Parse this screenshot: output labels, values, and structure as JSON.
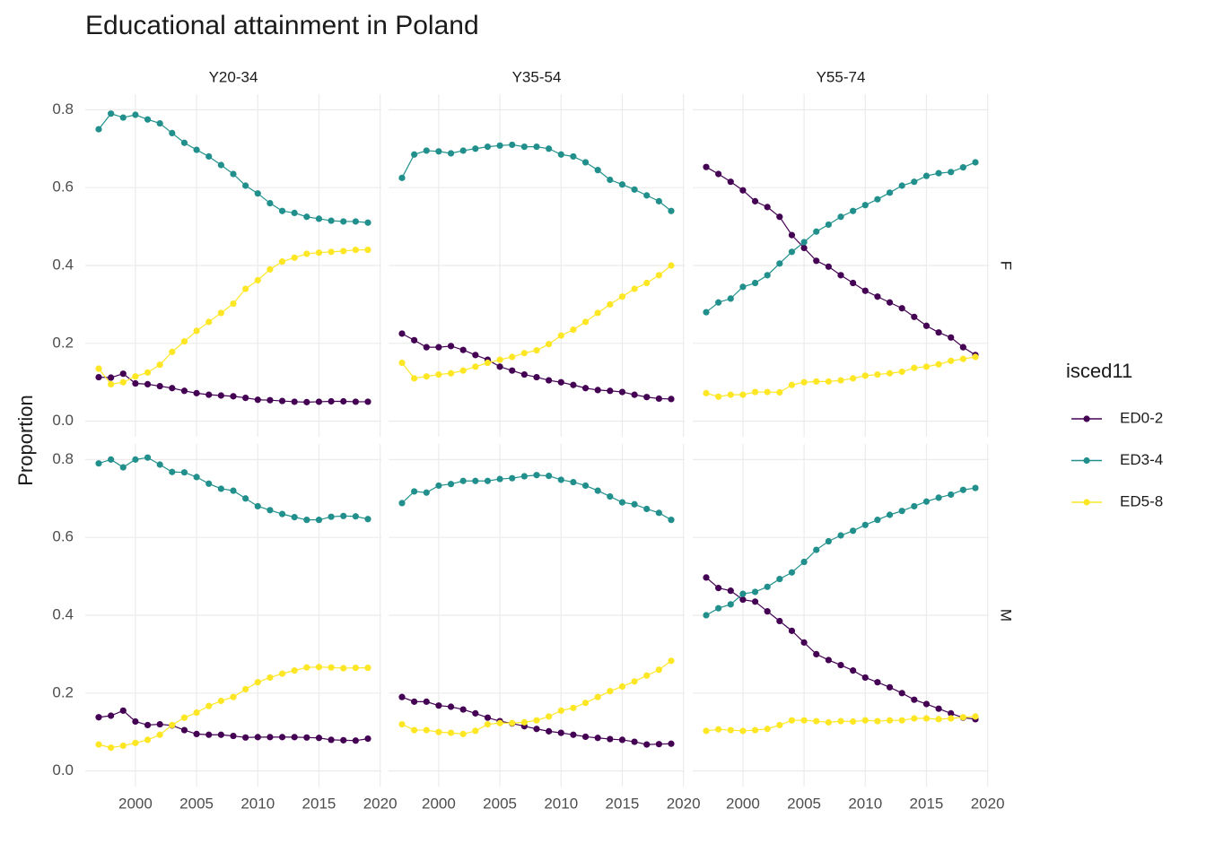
{
  "chart_data": {
    "type": "line",
    "title": "Educational attainment in Poland",
    "y_label": "Proportion",
    "legend_title": "isced11",
    "columns": [
      "Y20-34",
      "Y35-54",
      "Y55-74"
    ],
    "rows": [
      "F",
      "M"
    ],
    "x": [
      1997,
      1998,
      1999,
      2000,
      2001,
      2002,
      2003,
      2004,
      2005,
      2006,
      2007,
      2008,
      2009,
      2010,
      2011,
      2012,
      2013,
      2014,
      2015,
      2016,
      2017,
      2018,
      2019
    ],
    "xlim": [
      1995.9,
      2020.1
    ],
    "xticks": [
      2000,
      2005,
      2010,
      2015,
      2020
    ],
    "ylim": [
      -0.04,
      0.84
    ],
    "yticks": [
      {
        "value": 0,
        "label": "0.0"
      },
      0.2,
      0.4,
      0.6,
      0.8
    ],
    "grid": true,
    "series": [
      {
        "name": "ED0-2",
        "color": "#440154"
      },
      {
        "name": "ED3-4",
        "color": "#21908C"
      },
      {
        "name": "ED5-8",
        "color": "#FDE725"
      }
    ],
    "panels": [
      {
        "values": [
          [
            0.113,
            0.112,
            0.122,
            0.097,
            0.095,
            0.09,
            0.085,
            0.078,
            0.072,
            0.068,
            0.066,
            0.064,
            0.06,
            0.055,
            0.054,
            0.052,
            0.05,
            0.049,
            0.05,
            0.051,
            0.051,
            0.05,
            0.05
          ],
          [
            0.75,
            0.79,
            0.78,
            0.787,
            0.775,
            0.765,
            0.74,
            0.715,
            0.697,
            0.68,
            0.658,
            0.635,
            0.605,
            0.585,
            0.56,
            0.54,
            0.535,
            0.525,
            0.52,
            0.515,
            0.513,
            0.513,
            0.51
          ],
          [
            0.135,
            0.095,
            0.1,
            0.115,
            0.125,
            0.145,
            0.178,
            0.205,
            0.232,
            0.255,
            0.278,
            0.302,
            0.34,
            0.362,
            0.39,
            0.41,
            0.42,
            0.43,
            0.433,
            0.435,
            0.437,
            0.44,
            0.44
          ]
        ]
      },
      {
        "values": [
          [
            0.225,
            0.208,
            0.19,
            0.19,
            0.193,
            0.183,
            0.17,
            0.158,
            0.14,
            0.13,
            0.12,
            0.113,
            0.105,
            0.1,
            0.093,
            0.085,
            0.08,
            0.078,
            0.075,
            0.068,
            0.062,
            0.058,
            0.057
          ],
          [
            0.625,
            0.685,
            0.695,
            0.693,
            0.688,
            0.695,
            0.7,
            0.705,
            0.708,
            0.71,
            0.705,
            0.705,
            0.7,
            0.685,
            0.68,
            0.665,
            0.645,
            0.62,
            0.608,
            0.595,
            0.58,
            0.565,
            0.54
          ],
          [
            0.15,
            0.11,
            0.115,
            0.12,
            0.123,
            0.13,
            0.14,
            0.15,
            0.158,
            0.165,
            0.175,
            0.182,
            0.198,
            0.22,
            0.235,
            0.255,
            0.278,
            0.3,
            0.32,
            0.34,
            0.355,
            0.375,
            0.4
          ]
        ]
      },
      {
        "values": [
          [
            0.653,
            0.635,
            0.615,
            0.593,
            0.565,
            0.55,
            0.525,
            0.478,
            0.445,
            0.412,
            0.397,
            0.375,
            0.355,
            0.335,
            0.32,
            0.305,
            0.29,
            0.268,
            0.245,
            0.228,
            0.215,
            0.19,
            0.17
          ],
          [
            0.28,
            0.305,
            0.315,
            0.345,
            0.355,
            0.375,
            0.405,
            0.435,
            0.46,
            0.487,
            0.505,
            0.525,
            0.54,
            0.555,
            0.57,
            0.587,
            0.605,
            0.615,
            0.63,
            0.637,
            0.64,
            0.652,
            0.665
          ],
          [
            0.072,
            0.063,
            0.068,
            0.068,
            0.075,
            0.075,
            0.074,
            0.093,
            0.1,
            0.102,
            0.102,
            0.105,
            0.11,
            0.117,
            0.12,
            0.123,
            0.127,
            0.137,
            0.14,
            0.146,
            0.155,
            0.16,
            0.165
          ]
        ]
      },
      {
        "values": [
          [
            0.138,
            0.142,
            0.155,
            0.127,
            0.118,
            0.12,
            0.117,
            0.105,
            0.095,
            0.093,
            0.093,
            0.09,
            0.086,
            0.087,
            0.087,
            0.087,
            0.087,
            0.086,
            0.085,
            0.08,
            0.079,
            0.078,
            0.083
          ],
          [
            0.79,
            0.8,
            0.78,
            0.8,
            0.805,
            0.787,
            0.768,
            0.767,
            0.755,
            0.738,
            0.725,
            0.72,
            0.7,
            0.68,
            0.67,
            0.66,
            0.652,
            0.645,
            0.645,
            0.653,
            0.655,
            0.654,
            0.647
          ],
          [
            0.068,
            0.06,
            0.065,
            0.072,
            0.08,
            0.093,
            0.118,
            0.137,
            0.15,
            0.167,
            0.18,
            0.19,
            0.21,
            0.228,
            0.24,
            0.25,
            0.258,
            0.266,
            0.267,
            0.266,
            0.264,
            0.265,
            0.265
          ]
        ]
      },
      {
        "values": [
          [
            0.19,
            0.178,
            0.178,
            0.168,
            0.165,
            0.158,
            0.148,
            0.137,
            0.128,
            0.122,
            0.115,
            0.108,
            0.102,
            0.098,
            0.093,
            0.088,
            0.085,
            0.082,
            0.08,
            0.075,
            0.068,
            0.069,
            0.07
          ],
          [
            0.688,
            0.718,
            0.715,
            0.733,
            0.737,
            0.745,
            0.745,
            0.745,
            0.75,
            0.752,
            0.757,
            0.76,
            0.758,
            0.748,
            0.742,
            0.733,
            0.72,
            0.705,
            0.69,
            0.685,
            0.673,
            0.663,
            0.645
          ],
          [
            0.12,
            0.105,
            0.105,
            0.1,
            0.098,
            0.095,
            0.103,
            0.12,
            0.123,
            0.123,
            0.125,
            0.13,
            0.14,
            0.155,
            0.162,
            0.175,
            0.19,
            0.205,
            0.217,
            0.23,
            0.245,
            0.26,
            0.283
          ]
        ]
      },
      {
        "values": [
          [
            0.497,
            0.47,
            0.463,
            0.44,
            0.435,
            0.41,
            0.385,
            0.36,
            0.33,
            0.3,
            0.285,
            0.272,
            0.258,
            0.24,
            0.228,
            0.215,
            0.2,
            0.183,
            0.172,
            0.16,
            0.148,
            0.137,
            0.133
          ],
          [
            0.4,
            0.418,
            0.428,
            0.455,
            0.46,
            0.473,
            0.493,
            0.51,
            0.537,
            0.568,
            0.59,
            0.605,
            0.617,
            0.632,
            0.645,
            0.658,
            0.668,
            0.68,
            0.692,
            0.702,
            0.71,
            0.722,
            0.727
          ],
          [
            0.103,
            0.107,
            0.105,
            0.103,
            0.105,
            0.108,
            0.118,
            0.13,
            0.13,
            0.128,
            0.125,
            0.128,
            0.127,
            0.13,
            0.128,
            0.13,
            0.13,
            0.135,
            0.135,
            0.133,
            0.135,
            0.138,
            0.14
          ]
        ]
      }
    ]
  }
}
